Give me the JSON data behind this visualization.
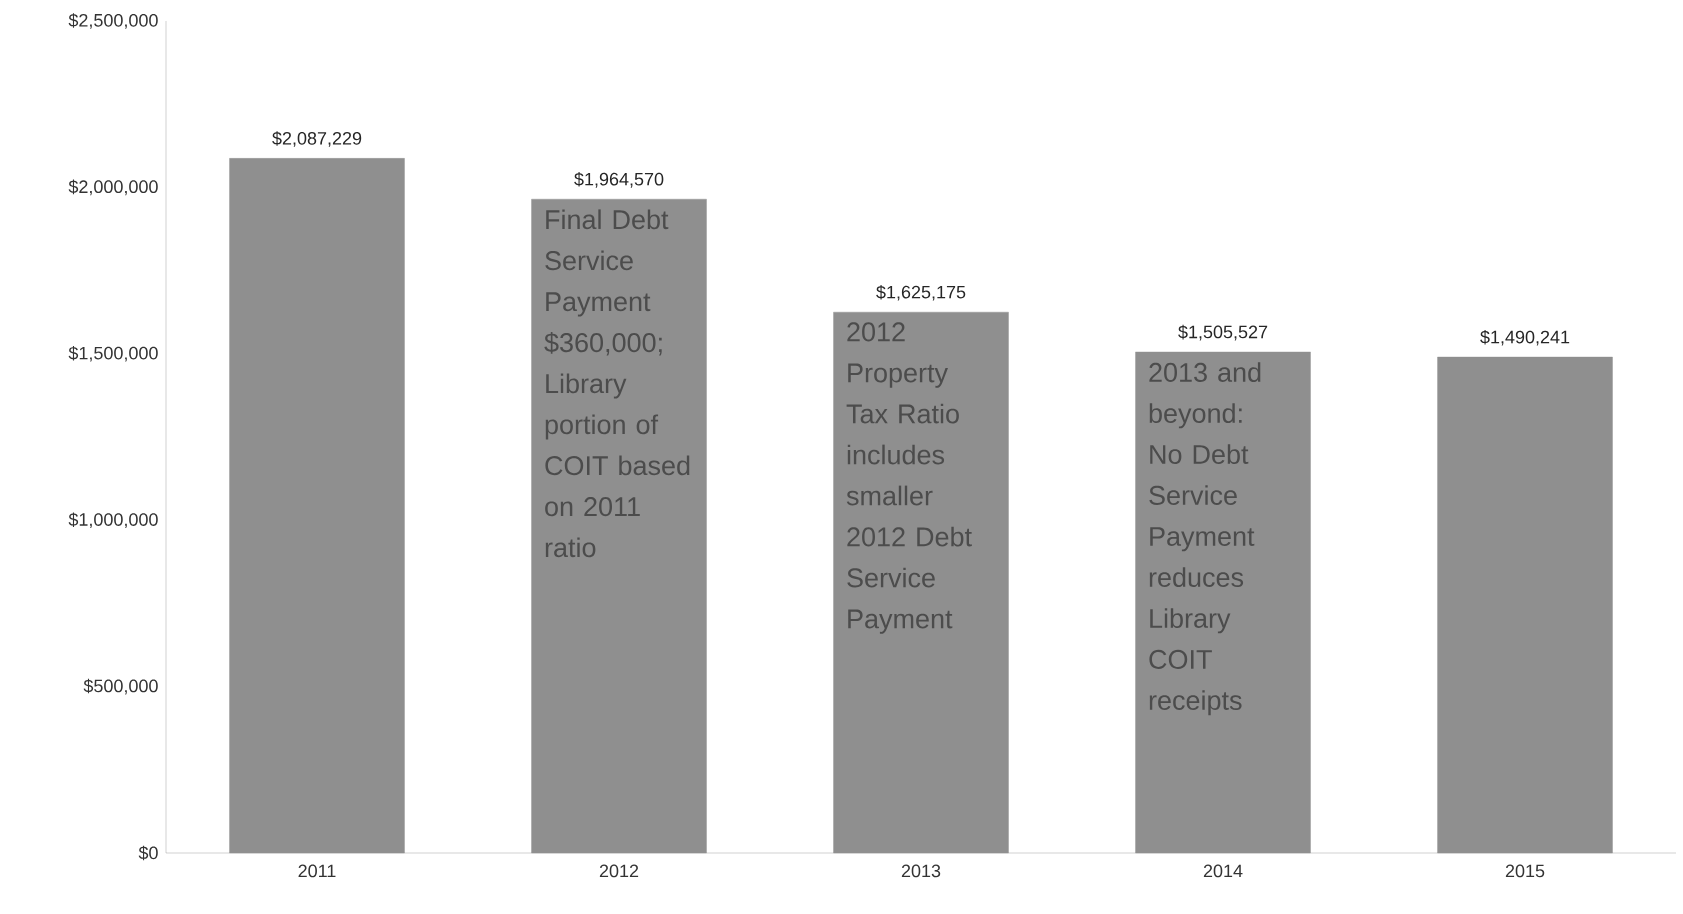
{
  "chart_data": {
    "type": "bar",
    "categories": [
      "2011",
      "2012",
      "2013",
      "2014",
      "2015"
    ],
    "values": [
      2087229,
      1964570,
      1625175,
      1505527,
      1490241
    ],
    "value_labels": [
      "$2,087,229",
      "$1,964,570",
      "$1,625,175",
      "$1,505,527",
      "$1,490,241"
    ],
    "color": "#8f8f8f",
    "ylim": [
      0,
      2500000
    ],
    "yticks": [
      {
        "value": 0,
        "label": "$0"
      },
      {
        "value": 500000,
        "label": "$500,000"
      },
      {
        "value": 1000000,
        "label": "$1,000,000"
      },
      {
        "value": 1500000,
        "label": "$1,500,000"
      },
      {
        "value": 2000000,
        "label": "$2,000,000"
      },
      {
        "value": 2500000,
        "label": "$2,500,000"
      }
    ],
    "grid": false,
    "annotations": [
      "Final Debt Service Payment $360,000; Library portion of COIT based on 2011 ratio",
      "2012 Property Tax Ratio includes smaller 2012 Debt Service Payment",
      "2013 and beyond: No Debt Service Payment reduces Library COIT receipts"
    ]
  }
}
